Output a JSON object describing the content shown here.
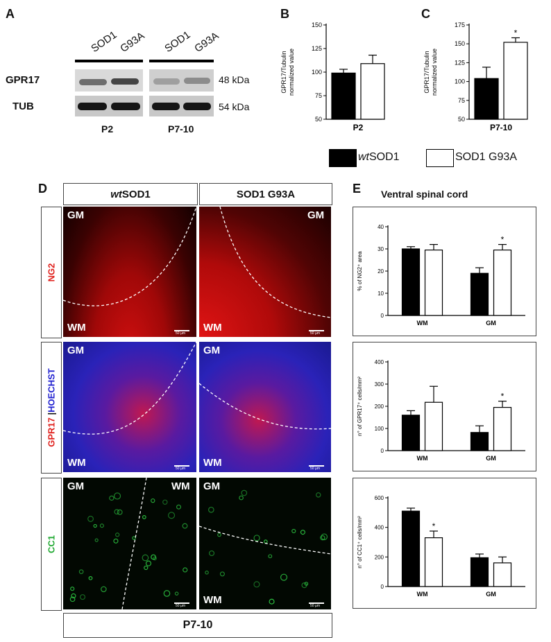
{
  "panels": {
    "A": "A",
    "B": "B",
    "C": "C",
    "D": "D",
    "E": "E"
  },
  "panel_a": {
    "lanes": [
      "SOD1",
      "G93A",
      "SOD1",
      "G93A"
    ],
    "rows": [
      {
        "label": "GPR17",
        "kda": "48 kDa"
      },
      {
        "label": "TUB",
        "kda": "54 kDa"
      }
    ],
    "groups": [
      "P2",
      "P7-10"
    ]
  },
  "legend": {
    "wt_prefix": "wt",
    "wt_suffix": "SOD1",
    "mut": "SOD1 G93A",
    "colors": {
      "wt": "#000000",
      "mut": "#ffffff"
    }
  },
  "panel_d": {
    "col_wt_prefix": "wt",
    "col_wt_suffix": "SOD1",
    "col_mut": "SOD1 G93A",
    "row_ng2": "NG2",
    "row_gpr17": "GPR17",
    "row_sep": " |",
    "row_hoechst": "HOECHST",
    "row_cc1": "CC1",
    "bottom": "P7-10",
    "gm": "GM",
    "wm": "WM",
    "scale": "50 µm",
    "colors": {
      "ng2": "#e0201c",
      "hoechst": "#2020d0",
      "cc1": "#22aa33"
    }
  },
  "panel_e": {
    "title": "Ventral spinal cord"
  },
  "chart_data": [
    {
      "id": "B",
      "type": "bar",
      "categories": [
        "P2"
      ],
      "series": [
        {
          "name": "wtSOD1",
          "values": [
            99
          ],
          "err": [
            4
          ]
        },
        {
          "name": "SOD1 G93A",
          "values": [
            109
          ],
          "err": [
            9
          ]
        }
      ],
      "ylabel": [
        "GPR17/Tubulin",
        "normalized value"
      ],
      "xlabel": "P2",
      "ylim": [
        50,
        150
      ],
      "yticks": [
        50,
        75,
        100,
        125,
        150
      ],
      "sig": []
    },
    {
      "id": "C",
      "type": "bar",
      "categories": [
        "P7-10"
      ],
      "series": [
        {
          "name": "wtSOD1",
          "values": [
            104
          ],
          "err": [
            15
          ]
        },
        {
          "name": "SOD1 G93A",
          "values": [
            152
          ],
          "err": [
            6
          ]
        }
      ],
      "ylabel": [
        "GPR17/Tubulin",
        "normalized value"
      ],
      "xlabel": "P7-10",
      "ylim": [
        50,
        175
      ],
      "yticks": [
        50,
        75,
        100,
        125,
        150,
        175
      ],
      "sig": [
        [
          0,
          1
        ]
      ]
    },
    {
      "id": "E1",
      "type": "bar",
      "categories": [
        "WM",
        "GM"
      ],
      "series": [
        {
          "name": "wtSOD1",
          "values": [
            30,
            19
          ],
          "err": [
            1,
            2.5
          ]
        },
        {
          "name": "SOD1 G93A",
          "values": [
            29.5,
            29.5
          ],
          "err": [
            2.5,
            2.5
          ]
        }
      ],
      "ylabel": [
        "% of NG2⁺ area"
      ],
      "ylim": [
        0,
        40
      ],
      "yticks": [
        0,
        10,
        20,
        30,
        40
      ],
      "sig": [
        [
          1,
          1
        ]
      ]
    },
    {
      "id": "E2",
      "type": "bar",
      "categories": [
        "WM",
        "GM"
      ],
      "series": [
        {
          "name": "wtSOD1",
          "values": [
            160,
            82
          ],
          "err": [
            20,
            30
          ]
        },
        {
          "name": "SOD1 G93A",
          "values": [
            218,
            195
          ],
          "err": [
            72,
            28
          ]
        }
      ],
      "ylabel": [
        "n° of GPR17⁺ cells/mm²"
      ],
      "ylim": [
        0,
        400
      ],
      "yticks": [
        0,
        100,
        200,
        300,
        400
      ],
      "sig": [
        [
          1,
          1
        ]
      ]
    },
    {
      "id": "E3",
      "type": "bar",
      "categories": [
        "WM",
        "GM"
      ],
      "series": [
        {
          "name": "wtSOD1",
          "values": [
            510,
            195
          ],
          "err": [
            20,
            25
          ]
        },
        {
          "name": "SOD1 G93A",
          "values": [
            330,
            160
          ],
          "err": [
            45,
            40
          ]
        }
      ],
      "ylabel": [
        "n° of CC1⁺ cells/mm²"
      ],
      "ylim": [
        0,
        600
      ],
      "yticks": [
        0,
        200,
        400,
        600
      ],
      "sig": [
        [
          0,
          1
        ]
      ]
    }
  ]
}
